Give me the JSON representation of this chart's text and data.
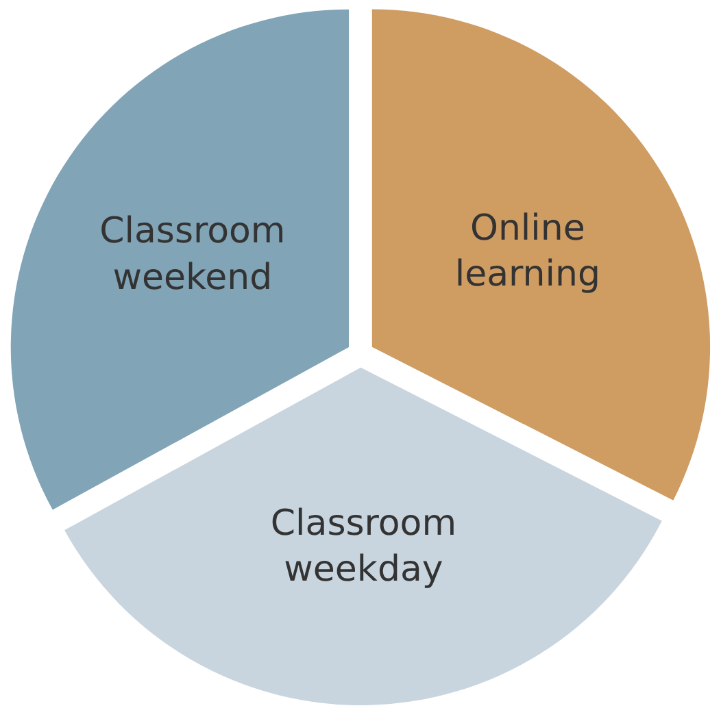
{
  "chart_data": {
    "type": "pie",
    "categories": [
      "Online learning",
      "Classroom weekday",
      "Classroom weekend"
    ],
    "values": [
      32.5,
      34.5,
      33
    ],
    "colors": [
      "#cf9c62",
      "#c8d5df",
      "#81a4b7"
    ],
    "legend": false
  }
}
